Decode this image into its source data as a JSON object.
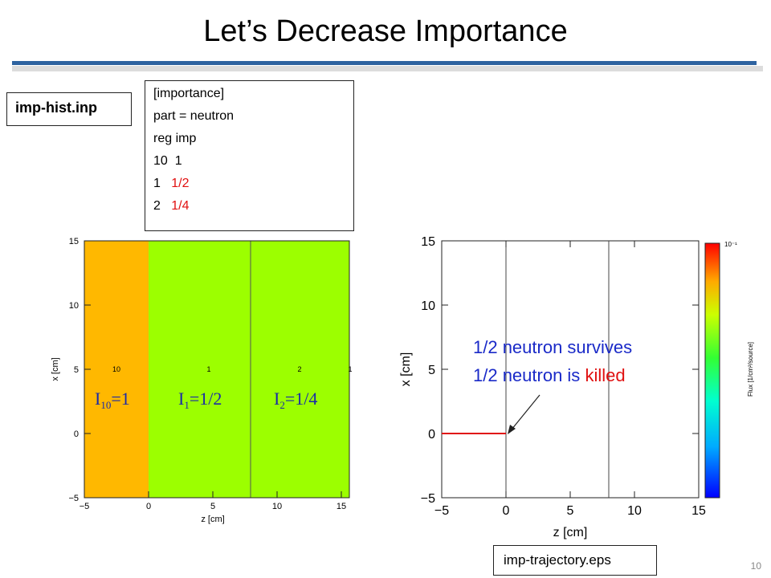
{
  "slide": {
    "title": "Let’s Decrease Importance",
    "page_number": "10"
  },
  "input_file": {
    "label": "imp-hist.inp",
    "lines": [
      {
        "text": "[importance]",
        "red": ""
      },
      {
        "text": "part = neutron",
        "red": ""
      },
      {
        "text": "reg imp",
        "red": ""
      },
      {
        "text": "10  1",
        "red": ""
      },
      {
        "text": "1   ",
        "red": "1/2"
      },
      {
        "text": "2   ",
        "red": "1/4"
      }
    ]
  },
  "left_plot": {
    "xlabel": "z [cm]",
    "ylabel": "x [cm]",
    "x_ticks": [
      "−5",
      "0",
      "5",
      "10",
      "15"
    ],
    "y_ticks": [
      "15",
      "10",
      "5",
      "0",
      "−5"
    ],
    "region_numbers": [
      "10",
      "1",
      "2",
      "1"
    ],
    "importance_labels": [
      {
        "base": "I",
        "sub": "10",
        "value": "=1"
      },
      {
        "base": "I",
        "sub": "1",
        "value": "=1/2"
      },
      {
        "base": "I",
        "sub": "2",
        "value": "=1/4"
      }
    ],
    "colors": {
      "region10": "#ffb800",
      "region1": "#9cff00",
      "label": "#1a2aa8"
    }
  },
  "right_plot": {
    "xlabel": "z [cm]",
    "ylabel": "x [cm]",
    "x_ticks": [
      "−5",
      "0",
      "5",
      "10",
      "15"
    ],
    "y_ticks": [
      "15",
      "10",
      "5",
      "0",
      "−5"
    ],
    "colorbar_top_label": "10⁻¹",
    "colorbar_title": "Flux [1/cm²/source]",
    "annotation_line1": "1/2 neutron survives",
    "annotation_line2_prefix": "1/2 neutron is ",
    "annotation_line2_red": "killed",
    "colors": {
      "trajectory": "#e01010",
      "annotation": "#1a2ac8",
      "killed": "#e01010"
    }
  },
  "output_file": {
    "label": "imp-trajectory.eps"
  }
}
